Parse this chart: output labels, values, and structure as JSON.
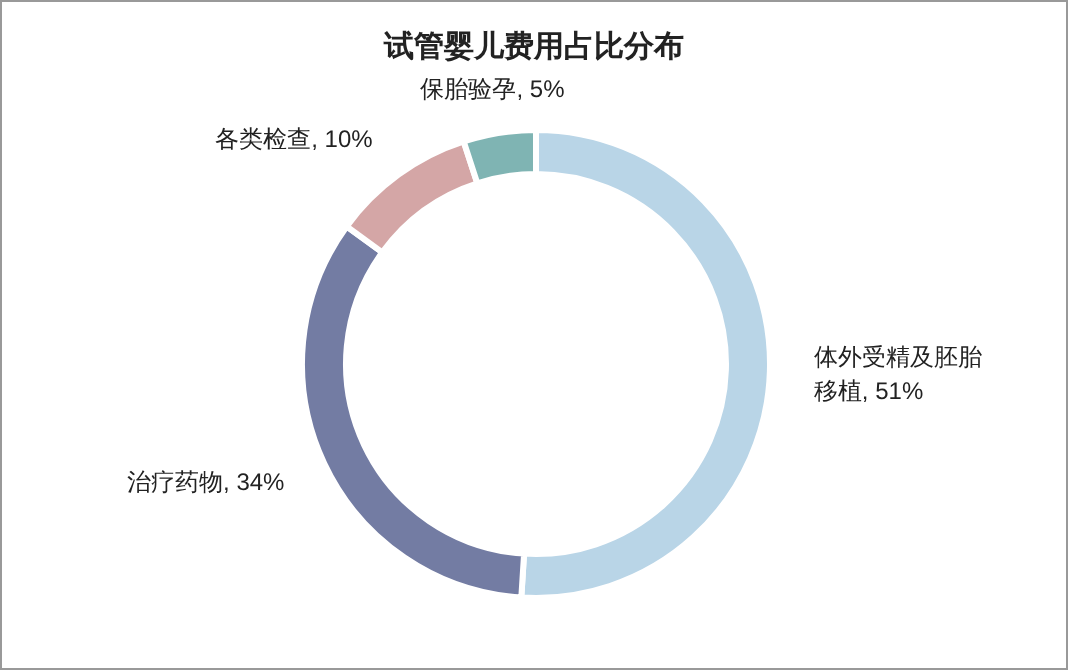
{
  "chart_data": {
    "type": "donut",
    "title": "试管婴儿费用占比分布",
    "categories": [
      "体外受精及胚胎移植",
      "治疗药物",
      "各类检查",
      "保胎验孕"
    ],
    "values": [
      51,
      34,
      10,
      5
    ],
    "colors": [
      "#b9d5e7",
      "#737ca3",
      "#d4a6a6",
      "#7fb4b3"
    ],
    "value_labels": [
      ", 51%",
      ", 34%",
      ", 10%",
      ", 5%"
    ]
  }
}
